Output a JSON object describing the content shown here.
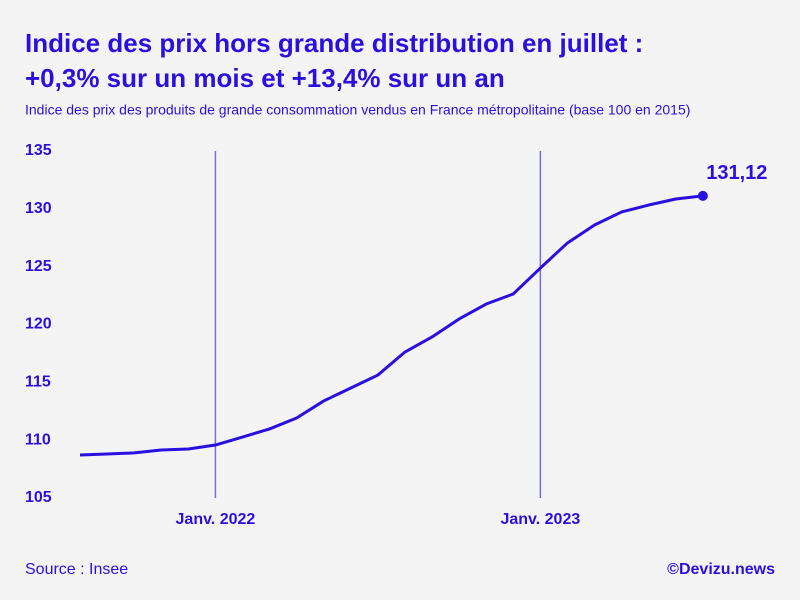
{
  "chart_data": {
    "type": "line",
    "title": "Indice des prix hors grande distribution en juillet :",
    "title_line2": "+0,3% sur un mois et +13,4% sur un an",
    "subtitle": "Indice des prix des produits de grande consommation vendus en France métropolitaine (base 100 en 2015)",
    "source": "Source : Insee",
    "credit": "©Devizu.news",
    "categories": [
      null,
      null,
      null,
      null,
      null,
      "Janv. 2022",
      null,
      null,
      null,
      null,
      null,
      null,
      null,
      null,
      null,
      null,
      null,
      "Janv. 2023",
      null,
      null,
      null,
      null,
      null,
      null
    ],
    "series": [
      {
        "color": "#2a10e0",
        "values": [
          108.72,
          108.8,
          108.9,
          109.15,
          109.24,
          109.58,
          110.27,
          110.97,
          111.92,
          113.39,
          114.51,
          115.63,
          117.62,
          118.92,
          120.48,
          121.77,
          122.64,
          124.88,
          127.05,
          128.6,
          129.73,
          130.33,
          130.85,
          131.12
        ],
        "value_labels": [
          null,
          null,
          null,
          null,
          null,
          null,
          null,
          null,
          null,
          null,
          null,
          null,
          null,
          null,
          null,
          null,
          null,
          null,
          null,
          null,
          null,
          null,
          null,
          "131,12"
        ]
      }
    ],
    "ylim": [
      105,
      135
    ],
    "yticks": [
      105,
      110,
      115,
      120,
      125,
      130,
      135
    ],
    "grid_color": "#7a6cf0"
  }
}
